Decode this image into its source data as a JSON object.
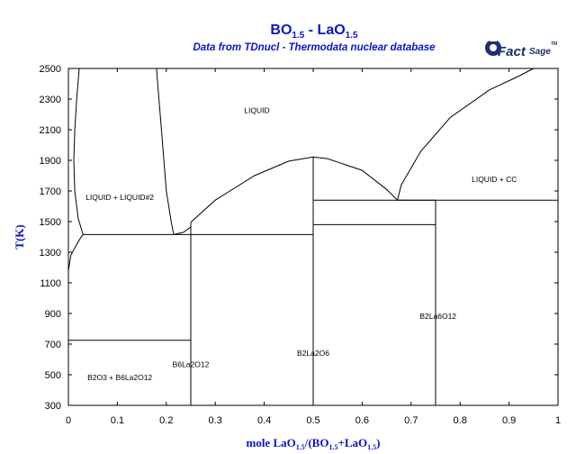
{
  "title": {
    "main": "BO",
    "sub1": "1.5",
    "mid": " - LaO",
    "sub2": "1.5"
  },
  "subtitle": "Data from TDnucl - Thermodata nuclear database",
  "logo": {
    "text1": "Fact",
    "text2": "Sage",
    "tm": "TM"
  },
  "xlabel": {
    "a": "mole LaO",
    "s1": "1.5",
    "b": "/(BO",
    "s2": "1.5",
    "c": "+LaO",
    "s3": "1.5",
    "d": ")"
  },
  "ylabel": "T(K)",
  "chart_data": {
    "type": "phase_diagram",
    "xlim": [
      0,
      1
    ],
    "ylim": [
      300,
      2500
    ],
    "xticks": [
      "0",
      "0.1",
      "0.2",
      "0.3",
      "0.4",
      "0.5",
      "0.6",
      "0.7",
      "0.8",
      "0.9",
      "1"
    ],
    "yticks": [
      "2500",
      "2300",
      "2100",
      "1900",
      "1700",
      "1500",
      "1300",
      "1100",
      "900",
      "700",
      "500",
      "300"
    ],
    "regions": [
      {
        "label": "LIQUID",
        "x": 0.385,
        "T": 2210
      },
      {
        "label": "LIQUID + LIQUID#2",
        "x": 0.105,
        "T": 1640
      },
      {
        "label": "LIQUID + CC",
        "x": 0.87,
        "T": 1760
      },
      {
        "label": "B2La6O12",
        "x": 0.755,
        "T": 865
      },
      {
        "label": "B2La2O6",
        "x": 0.5,
        "T": 625
      },
      {
        "label": "B6La2O12",
        "x": 0.25,
        "T": 550
      },
      {
        "label": "B2O3 + B6La2O12",
        "x": 0.105,
        "T": 465
      }
    ],
    "lines": [
      {
        "name": "miscibility-left",
        "points": [
          [
            0.0,
            1180
          ],
          [
            0.005,
            1280
          ],
          [
            0.015,
            1340
          ],
          [
            0.025,
            1395
          ],
          [
            0.03,
            1415
          ],
          [
            0.02,
            1520
          ],
          [
            0.013,
            1700
          ],
          [
            0.011,
            1900
          ],
          [
            0.013,
            2100
          ],
          [
            0.017,
            2300
          ],
          [
            0.022,
            2500
          ]
        ]
      },
      {
        "name": "miscibility-right",
        "points": [
          [
            0.18,
            2500
          ],
          [
            0.185,
            2300
          ],
          [
            0.19,
            2100
          ],
          [
            0.195,
            1900
          ],
          [
            0.2,
            1700
          ],
          [
            0.21,
            1500
          ],
          [
            0.215,
            1415
          ]
        ]
      },
      {
        "name": "monotectic",
        "points": [
          [
            0.03,
            1415
          ],
          [
            0.25,
            1415
          ]
        ]
      },
      {
        "name": "liquidus-segment",
        "points": [
          [
            0.215,
            1415
          ],
          [
            0.235,
            1430
          ],
          [
            0.25,
            1465
          ]
        ]
      },
      {
        "name": "liquidus-middle",
        "points": [
          [
            0.25,
            1495
          ],
          [
            0.3,
            1640
          ],
          [
            0.38,
            1800
          ],
          [
            0.45,
            1895
          ],
          [
            0.5,
            1922
          ],
          [
            0.53,
            1910
          ],
          [
            0.6,
            1835
          ],
          [
            0.65,
            1710
          ],
          [
            0.672,
            1640
          ]
        ]
      },
      {
        "name": "liquidus-right",
        "points": [
          [
            0.672,
            1640
          ],
          [
            0.68,
            1740
          ],
          [
            0.72,
            1960
          ],
          [
            0.78,
            2180
          ],
          [
            0.86,
            2360
          ],
          [
            0.92,
            2450
          ],
          [
            0.95,
            2500
          ]
        ]
      },
      {
        "name": "eutectic-left",
        "points": [
          [
            0.0,
            725
          ],
          [
            0.25,
            725
          ]
        ]
      },
      {
        "name": "solidus-B6La2O12-B2La2O6",
        "points": [
          [
            0.25,
            1415
          ],
          [
            0.5,
            1415
          ]
        ]
      },
      {
        "name": "eutectic-mid-upper",
        "points": [
          [
            0.5,
            1640
          ],
          [
            0.75,
            1640
          ]
        ]
      },
      {
        "name": "eutectic-mid-lower",
        "points": [
          [
            0.5,
            1480
          ],
          [
            0.75,
            1480
          ]
        ]
      },
      {
        "name": "eutectic-right",
        "points": [
          [
            0.672,
            1640
          ],
          [
            1.0,
            1640
          ]
        ]
      },
      {
        "name": "compound-B6La2O12",
        "points": [
          [
            0.25,
            300
          ],
          [
            0.25,
            1495
          ]
        ]
      },
      {
        "name": "compound-B2La2O6",
        "points": [
          [
            0.5,
            300
          ],
          [
            0.5,
            1922
          ]
        ]
      },
      {
        "name": "compound-B2La6O12",
        "points": [
          [
            0.75,
            300
          ],
          [
            0.75,
            1640
          ]
        ]
      }
    ]
  }
}
